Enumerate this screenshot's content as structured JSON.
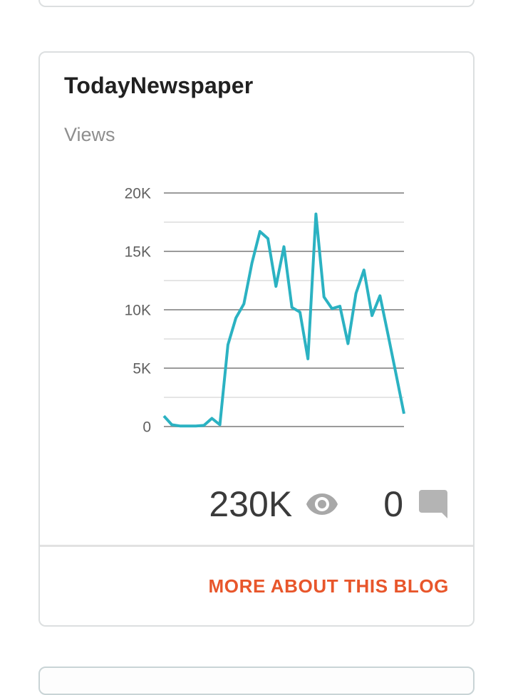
{
  "card": {
    "title": "TodayNewspaper",
    "chart_label": "Views",
    "views_count": "230K",
    "comments_count": "0",
    "footer_link_label": "MORE ABOUT THIS BLOG"
  },
  "icons": {
    "views": "eye-icon",
    "comments": "comment-bubble-icon"
  },
  "colors": {
    "line": "#2bb2c2",
    "grid_major": "#9b9b9b",
    "grid_minor": "#e5e5e5",
    "tick_label": "#616161",
    "link_orange": "#e8562b",
    "eye_icon_gray": "#a8a8a8",
    "comment_icon_gray": "#b4b4b4",
    "number_gray": "#3a3a3a",
    "card_border": "#dcdfe0"
  },
  "chart_data": {
    "type": "line",
    "title": "Views",
    "xlabel": "",
    "ylabel": "",
    "ylim": [
      0,
      20000
    ],
    "yticks": [
      0,
      5000,
      10000,
      15000,
      20000
    ],
    "ytick_labels": [
      "0",
      "5K",
      "10K",
      "15K",
      "20K"
    ],
    "minor_gridlines": [
      2500,
      7500,
      12500,
      17500
    ],
    "grid": "horizontal",
    "legend": "none",
    "x_axis_labels": "none",
    "line_color": "#2bb2c2",
    "values": [
      900,
      150,
      50,
      50,
      50,
      100,
      700,
      150,
      7000,
      9300,
      10500,
      14000,
      16700,
      16100,
      12000,
      15400,
      10200,
      9800,
      5800,
      18200,
      11100,
      10100,
      10300,
      7100,
      11400,
      13400,
      9500,
      11200,
      7900,
      4500,
      1100
    ]
  }
}
